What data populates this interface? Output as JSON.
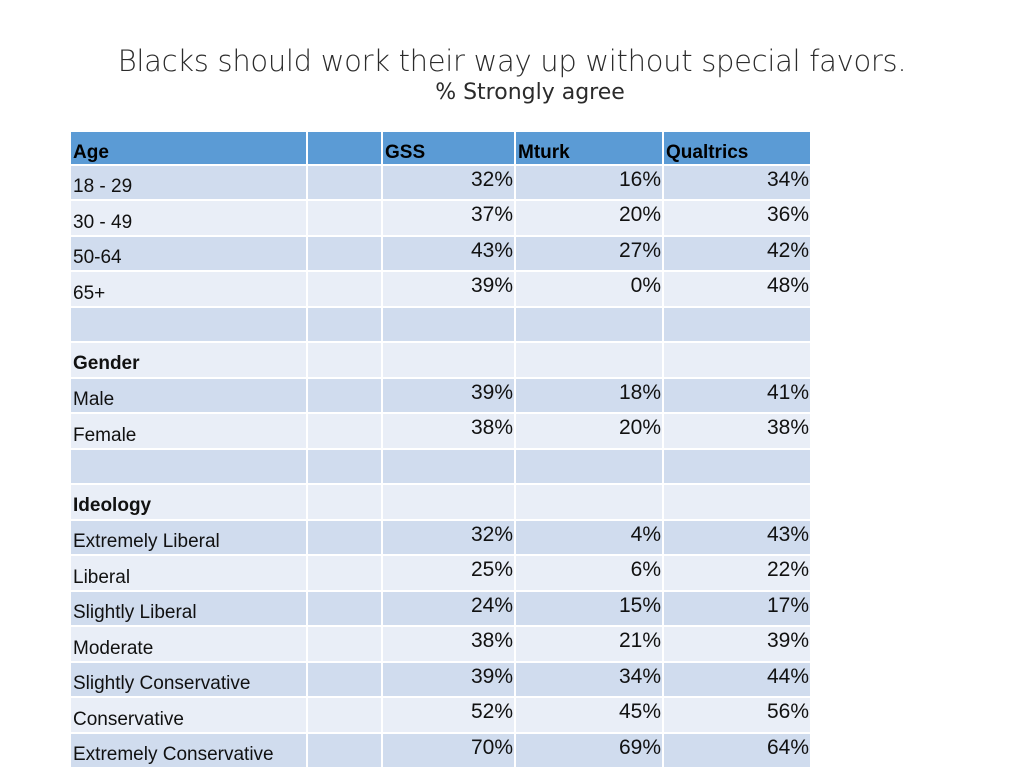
{
  "title": "Blacks should work their way up without special favors.",
  "subtitle": "% Strongly agree",
  "table": {
    "headers": [
      "Age",
      "",
      "GSS",
      "Mturk",
      "Qualtrics"
    ],
    "rows": [
      {
        "label": "18 - 29",
        "gss": "32%",
        "mturk": "16%",
        "qualtrics": "34%"
      },
      {
        "label": "30 - 49",
        "gss": "37%",
        "mturk": "20%",
        "qualtrics": "36%"
      },
      {
        "label": "50-64",
        "gss": "43%",
        "mturk": "27%",
        "qualtrics": "42%"
      },
      {
        "label": "65+",
        "gss": "39%",
        "mturk": "0%",
        "qualtrics": "48%"
      },
      {
        "label": "",
        "gss": "",
        "mturk": "",
        "qualtrics": ""
      },
      {
        "label": "Gender",
        "section": true,
        "gss": "",
        "mturk": "",
        "qualtrics": ""
      },
      {
        "label": "Male",
        "gss": "39%",
        "mturk": "18%",
        "qualtrics": "41%"
      },
      {
        "label": "Female",
        "gss": "38%",
        "mturk": "20%",
        "qualtrics": "38%"
      },
      {
        "label": "",
        "gss": "",
        "mturk": "",
        "qualtrics": ""
      },
      {
        "label": "Ideology",
        "section": true,
        "gss": "",
        "mturk": "",
        "qualtrics": ""
      },
      {
        "label": "Extremely Liberal",
        "gss": "32%",
        "mturk": "4%",
        "qualtrics": "43%"
      },
      {
        "label": "Liberal",
        "gss": "25%",
        "mturk": "6%",
        "qualtrics": "22%"
      },
      {
        "label": "Slightly Liberal",
        "gss": "24%",
        "mturk": "15%",
        "qualtrics": "17%"
      },
      {
        "label": "Moderate",
        "gss": "38%",
        "mturk": "21%",
        "qualtrics": "39%"
      },
      {
        "label": "Slightly Conservative",
        "gss": "39%",
        "mturk": "34%",
        "qualtrics": "44%"
      },
      {
        "label": "Conservative",
        "gss": "52%",
        "mturk": "45%",
        "qualtrics": "56%"
      },
      {
        "label": "Extremely Conservative",
        "gss": "70%",
        "mturk": "69%",
        "qualtrics": "64%"
      }
    ]
  },
  "colors": {
    "header_bg": "#5b9bd5",
    "row_dark": "#d0dcee",
    "row_light": "#e9eef7"
  }
}
